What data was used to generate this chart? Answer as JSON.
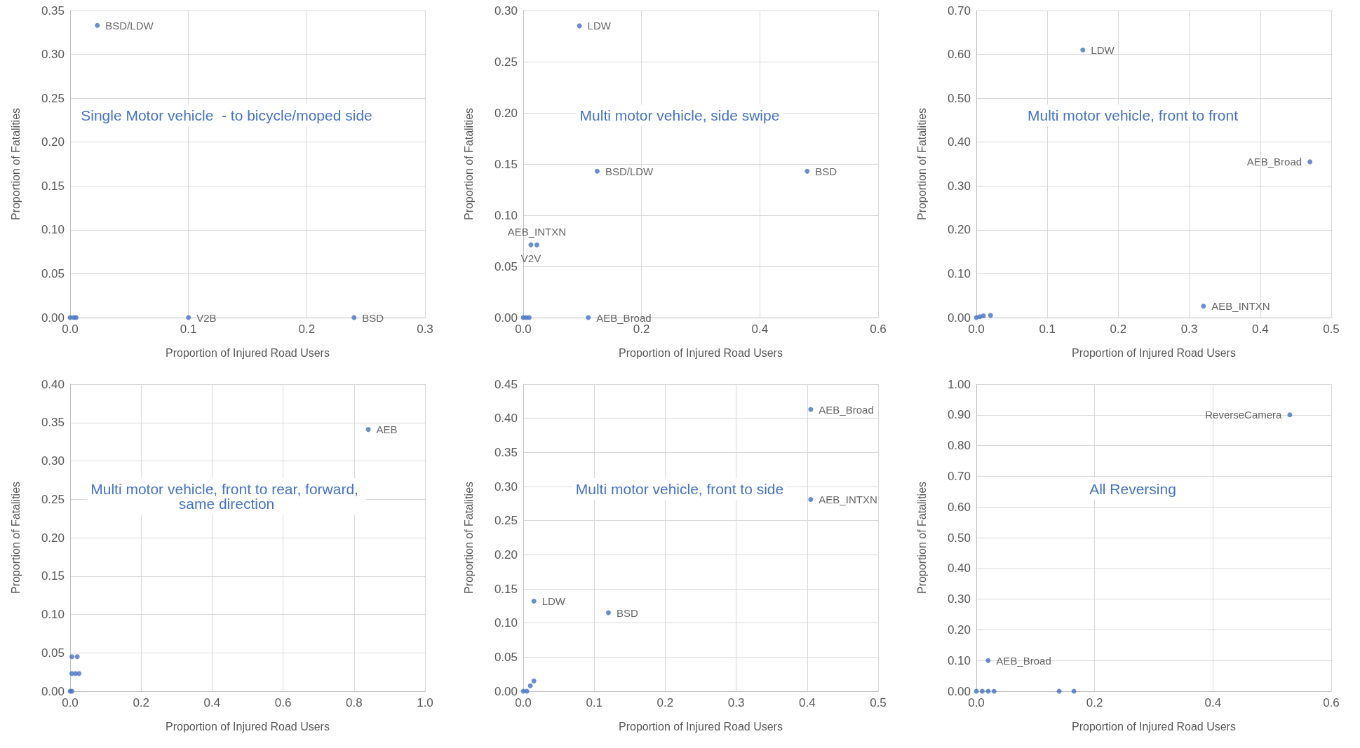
{
  "chart_data": [
    {
      "type": "scatter",
      "title": "Single Motor vehicle  - to bicycle/moped side",
      "xlabel": "Proportion of Injured Road Users",
      "ylabel": "Proportion of Fatalities",
      "grid": true,
      "marker": "circle",
      "xlim": [
        0,
        0.3
      ],
      "ylim": [
        0,
        0.35
      ],
      "xticks": [
        {
          "value": 0,
          "label": "0.0"
        },
        {
          "value": 0.1,
          "label": "0.1"
        },
        {
          "value": 0.2,
          "label": "0.2"
        },
        {
          "value": 0.3,
          "label": "0.3"
        }
      ],
      "yticks": [
        {
          "value": 0,
          "label": "0.00"
        },
        {
          "value": 0.05,
          "label": "0.05"
        },
        {
          "value": 0.1,
          "label": "0.10"
        },
        {
          "value": 0.15,
          "label": "0.15"
        },
        {
          "value": 0.2,
          "label": "0.20"
        },
        {
          "value": 0.25,
          "label": "0.25"
        },
        {
          "value": 0.3,
          "label": "0.30"
        },
        {
          "value": 0.35,
          "label": "0.35"
        }
      ],
      "series": [
        {
          "color": "#4472c4",
          "x": [
            0.023,
            0.1,
            0.24,
            0,
            0.003,
            0.005
          ],
          "values": [
            0.333,
            0,
            0,
            0,
            0,
            0
          ],
          "value_labels": [
            "BSD/LDW",
            "V2B",
            "BSD",
            null,
            null,
            null
          ]
        }
      ]
    },
    {
      "type": "scatter",
      "title": "Multi motor vehicle, side swipe",
      "xlabel": "Proportion of Injured Road Users",
      "ylabel": "Proportion of Fatalities",
      "grid": true,
      "marker": "circle",
      "xlim": [
        0,
        0.6
      ],
      "ylim": [
        0,
        0.3
      ],
      "xticks": [
        {
          "value": 0,
          "label": "0.0"
        },
        {
          "value": 0.2,
          "label": "0.2"
        },
        {
          "value": 0.4,
          "label": "0.4"
        },
        {
          "value": 0.6,
          "label": "0.6"
        }
      ],
      "yticks": [
        {
          "value": 0,
          "label": "0.00"
        },
        {
          "value": 0.05,
          "label": "0.05"
        },
        {
          "value": 0.1,
          "label": "0.10"
        },
        {
          "value": 0.15,
          "label": "0.15"
        },
        {
          "value": 0.2,
          "label": "0.20"
        },
        {
          "value": 0.25,
          "label": "0.25"
        },
        {
          "value": 0.3,
          "label": "0.30"
        }
      ],
      "series": [
        {
          "color": "#4472c4",
          "x": [
            0.095,
            0.125,
            0.48,
            0.023,
            0.013,
            0.11,
            0,
            0.005,
            0.01
          ],
          "values": [
            0.285,
            0.143,
            0.143,
            0.071,
            0.071,
            0,
            0,
            0,
            0
          ],
          "value_labels": [
            "LDW",
            "BSD/LDW",
            "BSD",
            "AEB_INTXN",
            "V2V",
            "AEB_Broad",
            null,
            null,
            null
          ]
        }
      ]
    },
    {
      "type": "scatter",
      "title": "Multi motor vehicle, front to front",
      "xlabel": "Proportion of Injured Road Users",
      "ylabel": "Proportion of Fatalities",
      "grid": true,
      "marker": "circle",
      "xlim": [
        0,
        0.5
      ],
      "ylim": [
        0,
        0.7
      ],
      "xticks": [
        {
          "value": 0,
          "label": "0.0"
        },
        {
          "value": 0.1,
          "label": "0.1"
        },
        {
          "value": 0.2,
          "label": "0.2"
        },
        {
          "value": 0.3,
          "label": "0.3"
        },
        {
          "value": 0.4,
          "label": "0.4"
        },
        {
          "value": 0.5,
          "label": "0.5"
        }
      ],
      "yticks": [
        {
          "value": 0,
          "label": "0.00"
        },
        {
          "value": 0.1,
          "label": "0.10"
        },
        {
          "value": 0.2,
          "label": "0.20"
        },
        {
          "value": 0.3,
          "label": "0.30"
        },
        {
          "value": 0.4,
          "label": "0.40"
        },
        {
          "value": 0.5,
          "label": "0.50"
        },
        {
          "value": 0.6,
          "label": "0.60"
        },
        {
          "value": 0.7,
          "label": "0.70"
        }
      ],
      "series": [
        {
          "color": "#4472c4",
          "x": [
            0.15,
            0.47,
            0.32,
            0,
            0.005,
            0.01,
            0.02
          ],
          "values": [
            0.61,
            0.355,
            0.026,
            0,
            0.002,
            0.004,
            0.005
          ],
          "value_labels": [
            "LDW",
            "AEB_Broad",
            "AEB_INTXN",
            null,
            null,
            null,
            null
          ]
        }
      ]
    },
    {
      "type": "scatter",
      "title": "Multi motor vehicle, front to rear, forward, same direction",
      "xlabel": "Proportion of Injured Road Users",
      "ylabel": "Proportion of Fatalities",
      "grid": true,
      "marker": "circle",
      "xlim": [
        0,
        1
      ],
      "ylim": [
        0,
        0.4
      ],
      "xticks": [
        {
          "value": 0,
          "label": "0.0"
        },
        {
          "value": 0.2,
          "label": "0.2"
        },
        {
          "value": 0.4,
          "label": "0.4"
        },
        {
          "value": 0.6,
          "label": "0.6"
        },
        {
          "value": 0.8,
          "label": "0.8"
        },
        {
          "value": 1,
          "label": "1.0"
        }
      ],
      "yticks": [
        {
          "value": 0,
          "label": "0.00"
        },
        {
          "value": 0.05,
          "label": "0.05"
        },
        {
          "value": 0.1,
          "label": "0.10"
        },
        {
          "value": 0.15,
          "label": "0.15"
        },
        {
          "value": 0.2,
          "label": "0.20"
        },
        {
          "value": 0.25,
          "label": "0.25"
        },
        {
          "value": 0.3,
          "label": "0.30"
        },
        {
          "value": 0.35,
          "label": "0.35"
        },
        {
          "value": 0.4,
          "label": "0.40"
        }
      ],
      "series": [
        {
          "color": "#4472c4",
          "x": [
            0.84,
            0.005,
            0.02,
            0.005,
            0.015,
            0.025,
            0,
            0.005
          ],
          "values": [
            0.341,
            0.045,
            0.045,
            0.023,
            0.023,
            0.023,
            0,
            0
          ],
          "value_labels": [
            "AEB",
            null,
            null,
            null,
            null,
            null,
            null,
            null
          ]
        }
      ]
    },
    {
      "type": "scatter",
      "title": "Multi motor vehicle, front to side",
      "xlabel": "Proportion of Injured Road Users",
      "ylabel": "Proportion of Fatalities",
      "grid": true,
      "marker": "circle",
      "xlim": [
        0,
        0.5
      ],
      "ylim": [
        0,
        0.45
      ],
      "xticks": [
        {
          "value": 0,
          "label": "0.0"
        },
        {
          "value": 0.1,
          "label": "0.1"
        },
        {
          "value": 0.2,
          "label": "0.2"
        },
        {
          "value": 0.3,
          "label": "0.3"
        },
        {
          "value": 0.4,
          "label": "0.4"
        },
        {
          "value": 0.5,
          "label": "0.5"
        }
      ],
      "yticks": [
        {
          "value": 0,
          "label": "0.00"
        },
        {
          "value": 0.05,
          "label": "0.05"
        },
        {
          "value": 0.1,
          "label": "0.10"
        },
        {
          "value": 0.15,
          "label": "0.15"
        },
        {
          "value": 0.2,
          "label": "0.20"
        },
        {
          "value": 0.25,
          "label": "0.25"
        },
        {
          "value": 0.3,
          "label": "0.30"
        },
        {
          "value": 0.35,
          "label": "0.35"
        },
        {
          "value": 0.4,
          "label": "0.40"
        },
        {
          "value": 0.45,
          "label": "0.45"
        }
      ],
      "series": [
        {
          "color": "#4472c4",
          "x": [
            0.405,
            0.405,
            0.015,
            0.12,
            0,
            0.005,
            0.01,
            0.015
          ],
          "values": [
            0.413,
            0.281,
            0.132,
            0.115,
            0,
            0,
            0.008,
            0.015
          ],
          "value_labels": [
            "AEB_Broad",
            "AEB_INTXN",
            "LDW",
            "BSD",
            null,
            null,
            null,
            null
          ]
        }
      ]
    },
    {
      "type": "scatter",
      "title": "All Reversing",
      "xlabel": "Proportion of Injured Road Users",
      "ylabel": "Proportion of Fatalities",
      "grid": true,
      "marker": "circle",
      "xlim": [
        0,
        0.6
      ],
      "ylim": [
        0,
        1
      ],
      "xticks": [
        {
          "value": 0,
          "label": "0.0"
        },
        {
          "value": 0.2,
          "label": "0.2"
        },
        {
          "value": 0.4,
          "label": "0.4"
        },
        {
          "value": 0.6,
          "label": "0.6"
        }
      ],
      "yticks": [
        {
          "value": 0,
          "label": "0.00"
        },
        {
          "value": 0.1,
          "label": "0.10"
        },
        {
          "value": 0.2,
          "label": "0.20"
        },
        {
          "value": 0.3,
          "label": "0.30"
        },
        {
          "value": 0.4,
          "label": "0.40"
        },
        {
          "value": 0.5,
          "label": "0.50"
        },
        {
          "value": 0.6,
          "label": "0.60"
        },
        {
          "value": 0.7,
          "label": "0.70"
        },
        {
          "value": 0.8,
          "label": "0.80"
        },
        {
          "value": 0.9,
          "label": "0.90"
        },
        {
          "value": 1,
          "label": "1.00"
        }
      ],
      "series": [
        {
          "color": "#4472c4",
          "x": [
            0.53,
            0.02,
            0.14,
            0.165,
            0,
            0.01,
            0.02,
            0.03
          ],
          "values": [
            0.9,
            0.1,
            0,
            0,
            0,
            0,
            0,
            0
          ],
          "value_labels": [
            "ReverseCamera",
            "AEB_Broad",
            null,
            null,
            null,
            null,
            null,
            null
          ]
        }
      ]
    }
  ]
}
